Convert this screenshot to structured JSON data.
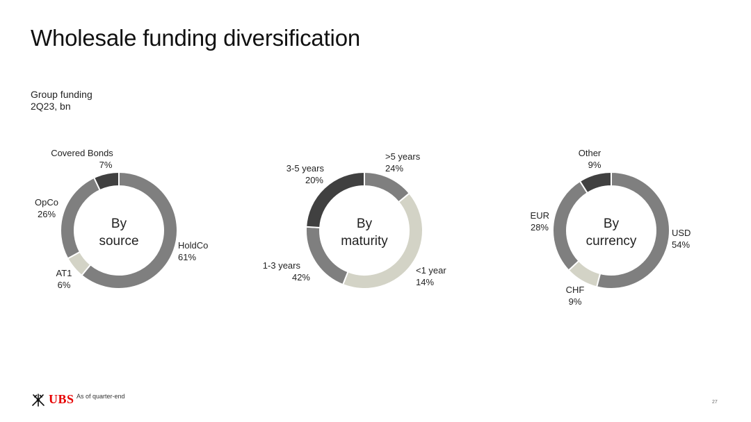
{
  "title": "Wholesale funding diversification",
  "subtitle": {
    "line1": "Group funding",
    "line2": "2Q23, bn"
  },
  "chart_data": [
    {
      "type": "pie",
      "center_label": [
        "By",
        "source"
      ],
      "slices": [
        {
          "name": "HoldCo",
          "value": 61,
          "label": "61%",
          "color": "#7f7f7f"
        },
        {
          "name": "AT1",
          "value": 6,
          "label": "6%",
          "color": "#d3d3c6"
        },
        {
          "name": "OpCo",
          "value": 26,
          "label": "26%",
          "color": "#7f7f7f"
        },
        {
          "name": "Covered Bonds",
          "value": 7,
          "label": "7%",
          "color": "#404040"
        }
      ]
    },
    {
      "type": "pie",
      "center_label": [
        "By",
        "maturity"
      ],
      "slices": [
        {
          "name": "<1 year",
          "value": 14,
          "label": "14%",
          "color": "#7f7f7f"
        },
        {
          "name": "1-3 years",
          "value": 42,
          "label": "42%",
          "color": "#d3d3c6"
        },
        {
          "name": "3-5 years",
          "value": 20,
          "label": "20%",
          "color": "#7f7f7f"
        },
        {
          "name": ">5 years",
          "value": 24,
          "label": "24%",
          "color": "#404040"
        }
      ]
    },
    {
      "type": "pie",
      "center_label": [
        "By",
        "currency"
      ],
      "slices": [
        {
          "name": "USD",
          "value": 54,
          "label": "54%",
          "color": "#7f7f7f"
        },
        {
          "name": "CHF",
          "value": 9,
          "label": "9%",
          "color": "#d3d3c6"
        },
        {
          "name": "EUR",
          "value": 28,
          "label": "28%",
          "color": "#7f7f7f"
        },
        {
          "name": "Other",
          "value": 9,
          "label": "9%",
          "color": "#404040"
        }
      ]
    }
  ],
  "footer": {
    "logo_text": "UBS",
    "logo_icon": "ubs-keys-icon",
    "note": "As of quarter-end",
    "page_number": "27"
  }
}
